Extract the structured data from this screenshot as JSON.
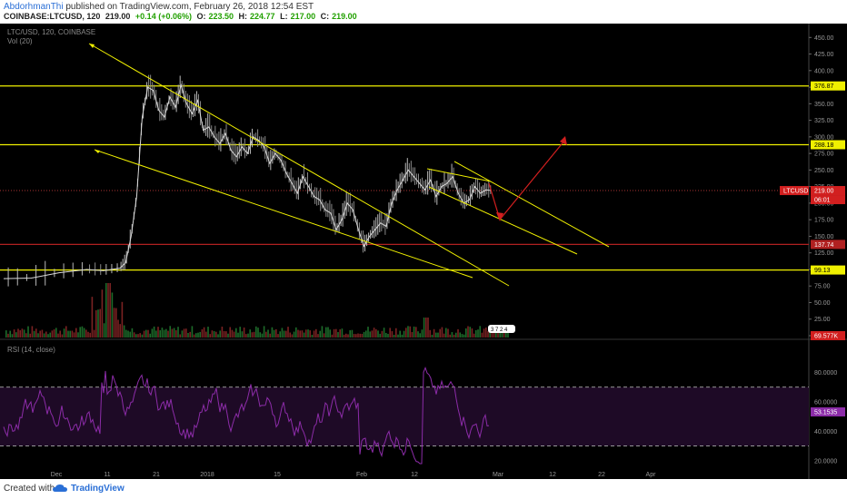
{
  "header": {
    "author": "AbdorhmanThi",
    "published": "published on TradingView.com, February 26, 2018 12:54 EST",
    "symbol": "COINBASE:LTCUSD, 120",
    "last": "219.00",
    "change": "+0.14 (+0.06%)",
    "o_label": "O:",
    "o": "223.50",
    "h_label": "H:",
    "h": "224.77",
    "l_label": "L:",
    "l": "217.00",
    "c_label": "C:",
    "c": "219.00"
  },
  "footer": {
    "created_with": "Created with",
    "brand": "TradingView"
  },
  "colors": {
    "up": "#21a000",
    "down": "#d21f1f",
    "yellow": "#f0f000",
    "red_line": "#b02020",
    "rsi": "#8c2ca8"
  },
  "chart_data": [
    {
      "type": "line",
      "title": "LTC/USD, 120, COINBASE",
      "legend": "Vol (20)",
      "price_ylim": [
        0,
        460
      ],
      "y_ticks": [
        "450.00",
        "425.00",
        "400.00",
        "375.00",
        "350.00",
        "325.00",
        "300.00",
        "275.00",
        "250.00",
        "225.00",
        "200.00",
        "175.00",
        "150.00",
        "125.00",
        "100.00",
        "75.00",
        "50.00",
        "25.00",
        "0.00"
      ],
      "x_ticks": [
        "Dec",
        "11",
        "21",
        "2018",
        "15",
        "Feb",
        "12",
        "Mar",
        "12",
        "22",
        "Apr"
      ],
      "horizontal_levels": [
        376.87,
        288.18,
        137.74,
        99.13
      ],
      "level_labels": [
        "376.87",
        "288.18",
        "137.74",
        "99.13"
      ],
      "last_price_label": "LTCUSD",
      "last_price": "219.00",
      "countdown": "06:01",
      "volume_label": "69.577K",
      "volume_annotation": "3 7 2 4",
      "price_x": [
        0,
        5,
        10,
        15,
        18,
        21,
        22,
        23,
        24,
        25,
        26,
        27,
        28,
        29,
        30,
        31,
        32,
        33,
        34,
        35,
        36,
        37,
        38,
        39,
        40,
        41,
        42,
        43,
        44,
        45,
        46,
        47,
        48,
        49,
        50,
        51,
        52,
        53,
        54,
        55,
        56,
        57,
        58,
        59,
        60,
        61,
        62,
        63,
        64,
        65,
        66,
        67,
        68,
        69,
        70,
        71,
        72,
        73,
        74,
        75,
        76,
        77,
        78,
        79,
        80,
        81,
        82,
        83,
        84,
        85,
        86,
        87,
        88
      ],
      "price": [
        86,
        87,
        95,
        100,
        98,
        102,
        110,
        150,
        210,
        330,
        375,
        370,
        340,
        330,
        360,
        345,
        378,
        350,
        335,
        355,
        310,
        315,
        300,
        290,
        305,
        280,
        270,
        285,
        275,
        300,
        295,
        285,
        260,
        275,
        265,
        245,
        230,
        215,
        240,
        225,
        210,
        205,
        190,
        185,
        160,
        175,
        200,
        190,
        160,
        135,
        150,
        160,
        170,
        165,
        200,
        220,
        235,
        250,
        240,
        230,
        220,
        235,
        210,
        225,
        230,
        240,
        215,
        200,
        205,
        225,
        215,
        220,
        219
      ],
      "rsi_ylim": [
        10,
        100
      ],
      "rsi_ticks": [
        "80.0000",
        "60.0000",
        "40.0000",
        "20.0000"
      ],
      "rsi_band": [
        70,
        30
      ],
      "rsi_title": "RSI (14, close)",
      "rsi_last": "53.1535"
    }
  ]
}
